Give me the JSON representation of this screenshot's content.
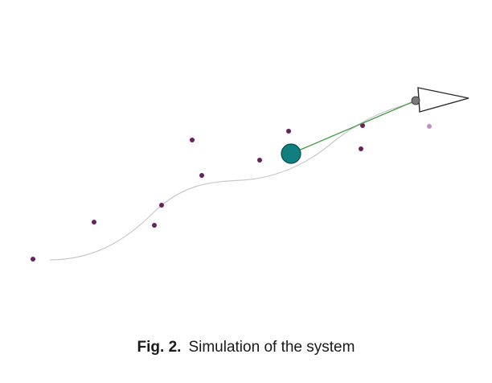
{
  "colors": {
    "trajectory": "#c8c8c8",
    "landmark": "#6b1f5e",
    "landmark_ghost": "#c28fc0",
    "robot_fill": "#117f7f",
    "robot_stroke": "#0b4d4d",
    "link": "#3f9a3f",
    "arrow_fill": "#ffffff",
    "arrow_stroke": "#2a2a2a",
    "pivot_fill": "#7a7a7a"
  },
  "icons": {
    "robot": "teal-circle",
    "pointer": "triangle-arrow",
    "landmark": "purple-dot"
  },
  "caption": {
    "label": "Fig. 2.",
    "text": "Simulation of the system"
  }
}
